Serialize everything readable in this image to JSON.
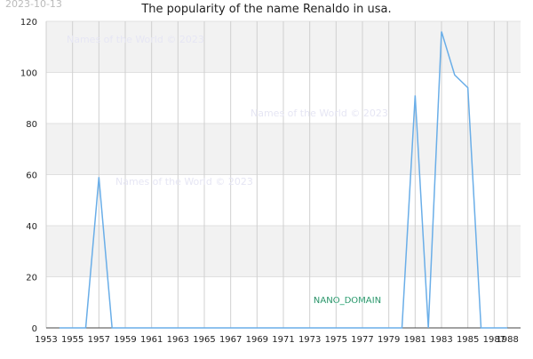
{
  "chart_data": {
    "type": "line",
    "title": "The popularity of the name Renaldo in usa.",
    "date_stamp": "2023-10-13",
    "watermarks": [
      "Names of the World © 2023",
      "Names of the World © 2023",
      "Names of the World © 2023"
    ],
    "badge": "NANO_DOMAIN",
    "x": [
      1954,
      1955,
      1956,
      1957,
      1958,
      1959,
      1960,
      1961,
      1962,
      1963,
      1964,
      1965,
      1966,
      1967,
      1968,
      1969,
      1970,
      1971,
      1972,
      1973,
      1974,
      1975,
      1976,
      1977,
      1978,
      1979,
      1980,
      1981,
      1982,
      1983,
      1984,
      1985,
      1986,
      1987,
      1988
    ],
    "series": [
      {
        "name": "Renaldo",
        "color": "#6aaee8",
        "values": [
          0,
          0,
          0,
          59,
          0,
          0,
          0,
          0,
          0,
          0,
          0,
          0,
          0,
          0,
          0,
          0,
          0,
          0,
          0,
          0,
          0,
          0,
          0,
          0,
          0,
          0,
          0,
          91,
          0,
          116,
          99,
          94,
          0,
          0,
          0
        ]
      }
    ],
    "xlim": [
      1953,
      1989
    ],
    "xticks": [
      1953,
      1955,
      1957,
      1959,
      1961,
      1963,
      1965,
      1967,
      1969,
      1971,
      1973,
      1975,
      1977,
      1979,
      1981,
      1983,
      1985,
      1987,
      1988
    ],
    "ylim": [
      0,
      120
    ],
    "yticks": [
      0,
      20,
      40,
      60,
      80,
      100,
      120
    ],
    "grid": true
  }
}
